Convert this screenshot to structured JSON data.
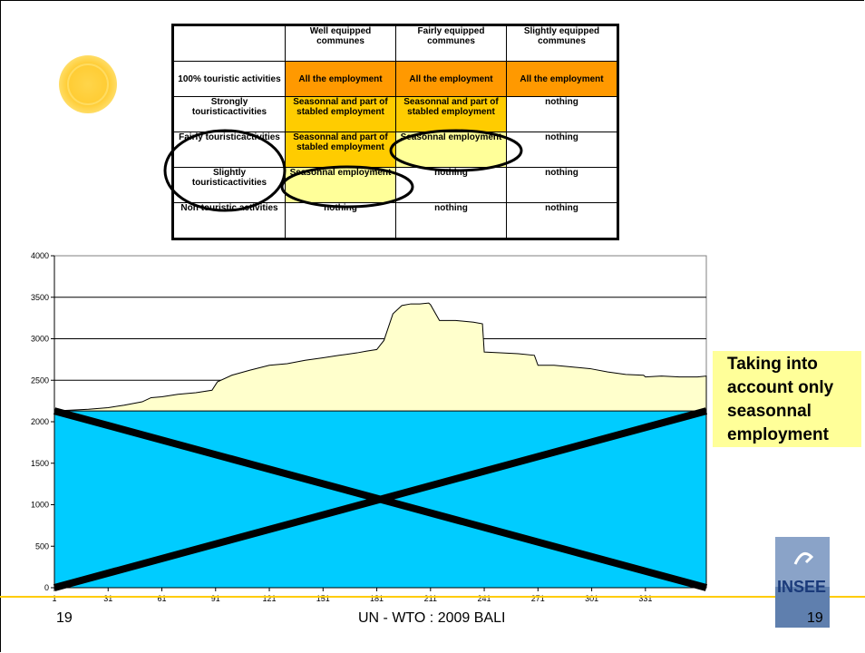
{
  "table": {
    "headers": [
      "",
      "Well equipped communes",
      "Fairly equipped communes",
      "Slightly equipped communes"
    ],
    "rows": [
      {
        "label": "100% touristic activities",
        "cells": [
          "All the employment",
          "All the employment",
          "All the employment"
        ]
      },
      {
        "label": "Strongly touristicactivities",
        "cells": [
          "Seasonnal and part of stabled employment",
          "Seasonnal and part of stabled employment",
          "nothing"
        ]
      },
      {
        "label": "Fairly touristicactivities",
        "cells": [
          "Seasonnal and part of stabled employment",
          "Seasonnal employment",
          "nothing"
        ]
      },
      {
        "label": "Slightly touristicactivities",
        "cells": [
          "Seasonnal employment",
          "nothing",
          "nothing"
        ]
      },
      {
        "label": "Non touristic activities",
        "cells": [
          "nothing",
          "nothing",
          "nothing"
        ]
      }
    ],
    "colors": {
      "orange": "#ff9900",
      "yellow": "#ffcc00",
      "light_yellow": "#ffff99"
    }
  },
  "side_note": "Taking into account only seasonnal employment",
  "footer": {
    "left": "19",
    "center": "UN - WTO : 2009 BALI",
    "right": "19"
  },
  "logo_text": "INSEE",
  "chart_data": {
    "type": "area",
    "x_ticks": [
      1,
      31,
      61,
      91,
      121,
      151,
      181,
      211,
      241,
      271,
      301,
      331
    ],
    "y_ticks": [
      0,
      500,
      1000,
      1500,
      2000,
      2500,
      3000,
      3500,
      4000
    ],
    "xlim": [
      1,
      365
    ],
    "ylim": [
      0,
      4000
    ],
    "grid": "horizontal",
    "baseline_value": 2130,
    "series": [
      {
        "role": "baseline",
        "color": "#00ccff",
        "x": [
          1,
          365
        ],
        "y": [
          2130,
          2130
        ]
      },
      {
        "role": "total",
        "color": "#ffffcc",
        "x": [
          1,
          10,
          20,
          31,
          40,
          50,
          55,
          61,
          70,
          80,
          89,
          92,
          100,
          110,
          121,
          131,
          141,
          151,
          160,
          170,
          175,
          181,
          185,
          190,
          195,
          200,
          205,
          210,
          211,
          216,
          225,
          235,
          240,
          241,
          250,
          260,
          269,
          271,
          280,
          290,
          300,
          310,
          320,
          330,
          331,
          340,
          350,
          360,
          365
        ],
        "y": [
          2130,
          2140,
          2150,
          2170,
          2200,
          2240,
          2290,
          2300,
          2330,
          2350,
          2380,
          2480,
          2560,
          2620,
          2680,
          2700,
          2740,
          2770,
          2800,
          2830,
          2850,
          2870,
          2980,
          3300,
          3400,
          3420,
          3420,
          3430,
          3410,
          3220,
          3220,
          3200,
          3180,
          2840,
          2830,
          2820,
          2800,
          2680,
          2680,
          2660,
          2640,
          2600,
          2570,
          2560,
          2540,
          2550,
          2540,
          2540,
          2550
        ]
      }
    ]
  }
}
